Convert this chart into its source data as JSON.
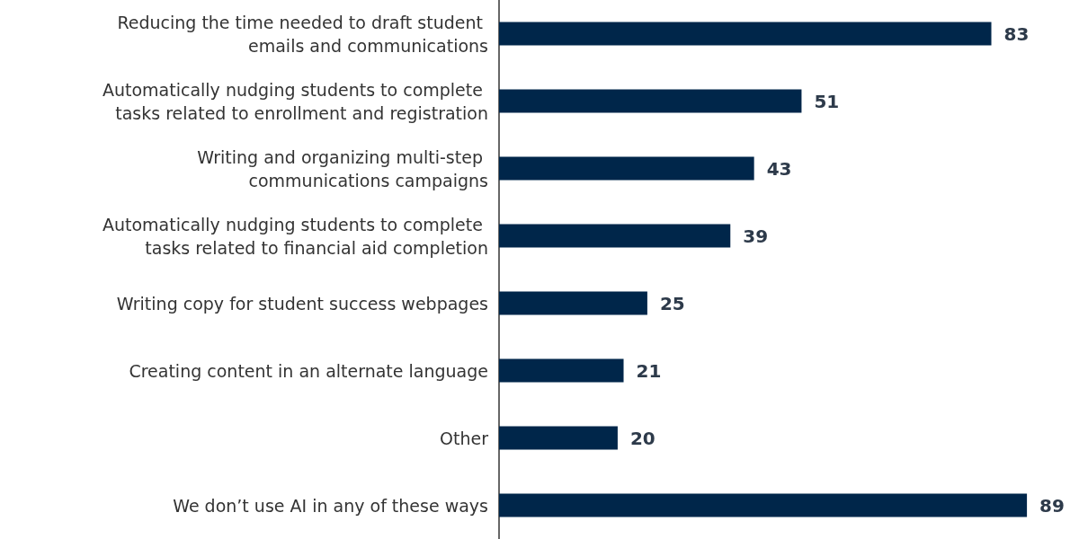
{
  "chart_data": {
    "type": "bar",
    "orientation": "horizontal",
    "categories": [
      "Reducing the time needed to draft student emails and communications",
      "Automatically nudging students to complete tasks related to enrollment and registration",
      "Writing and organizing multi-step communications campaigns",
      "Automatically nudging students to complete tasks related to financial aid completion",
      "Writing copy for student success webpages",
      "Creating content in an alternate language",
      "Other",
      "We don’t use AI in any of these ways"
    ],
    "values": [
      83,
      51,
      43,
      39,
      25,
      21,
      20,
      89
    ],
    "color": "#00264a",
    "data_labels": true
  }
}
